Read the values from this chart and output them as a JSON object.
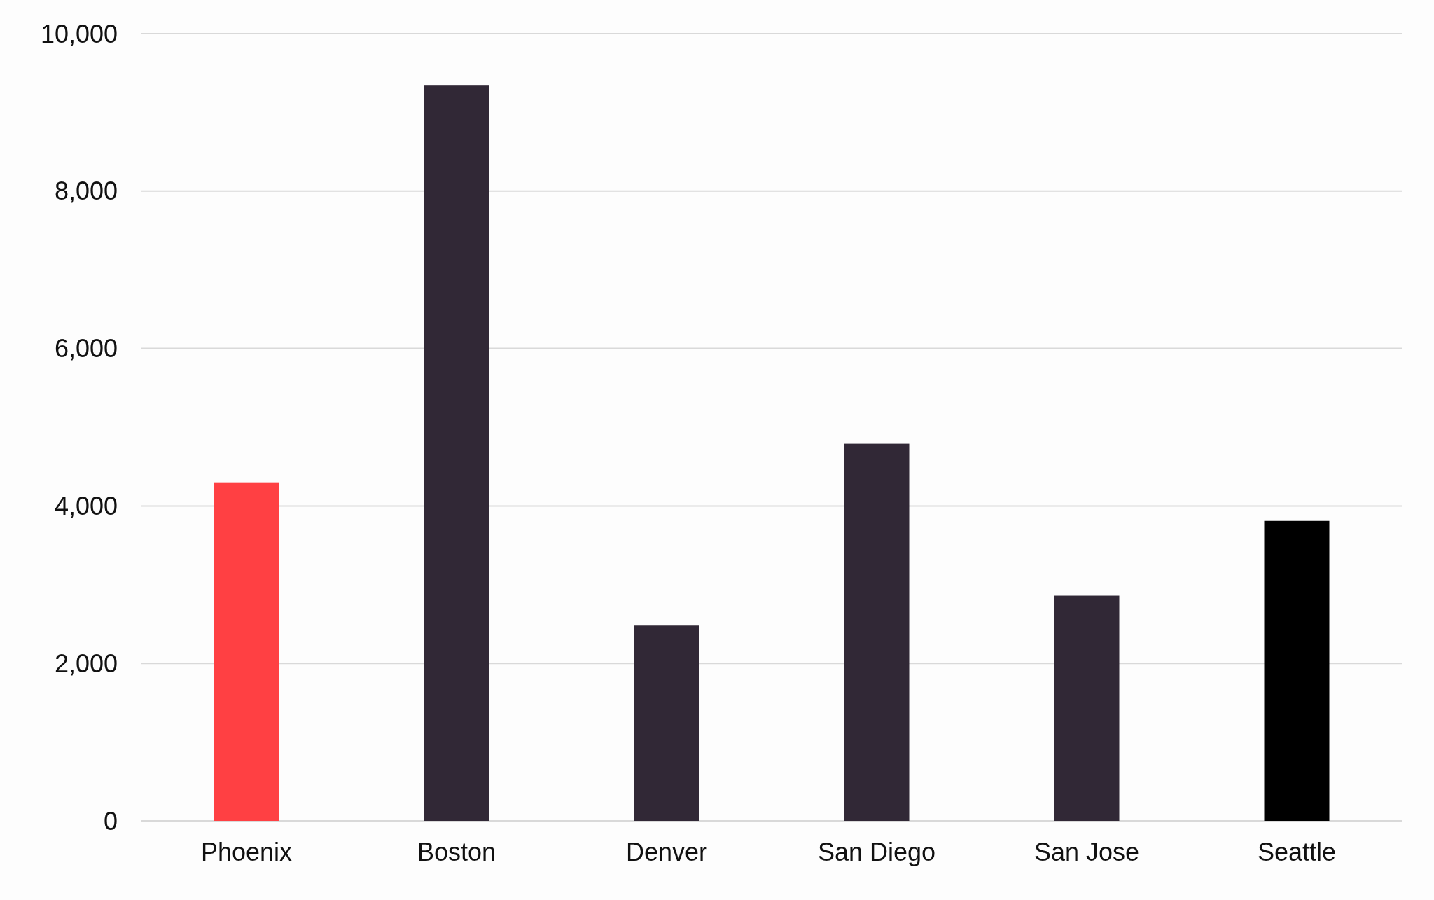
{
  "chart_data": {
    "type": "bar",
    "categories": [
      "Phoenix",
      "Boston",
      "Denver",
      "San Diego",
      "San Jose",
      "Seattle"
    ],
    "values": [
      4300,
      9340,
      2480,
      4790,
      2860,
      3810
    ],
    "colors": [
      "#ff4043",
      "#312836",
      "#312836",
      "#312836",
      "#312836",
      "#000000"
    ],
    "ylim": [
      0,
      10000
    ],
    "yticks": [
      {
        "value": 0,
        "label": "0"
      },
      {
        "value": 2000,
        "label": "2,000"
      },
      {
        "value": 4000,
        "label": "4,000"
      },
      {
        "value": 6000,
        "label": "6,000"
      },
      {
        "value": 8000,
        "label": "8,000"
      },
      {
        "value": 10000,
        "label": "10,000"
      }
    ],
    "grid": "y"
  }
}
